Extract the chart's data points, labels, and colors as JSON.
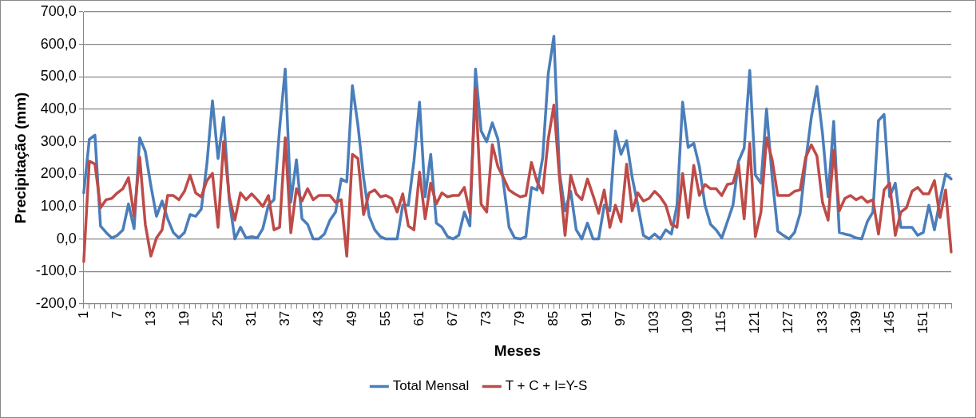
{
  "chart_data": {
    "type": "line",
    "xlabel": "Meses",
    "ylabel": "Precipitação (mm)",
    "categories": [
      "1",
      null,
      null,
      null,
      null,
      null,
      "7",
      null,
      null,
      null,
      null,
      null,
      "13",
      null,
      null,
      null,
      null,
      null,
      "19",
      null,
      null,
      null,
      null,
      null,
      "25",
      null,
      null,
      null,
      null,
      null,
      "31",
      null,
      null,
      null,
      null,
      null,
      "37",
      null,
      null,
      null,
      null,
      null,
      "43",
      null,
      null,
      null,
      null,
      null,
      "49",
      null,
      null,
      null,
      null,
      null,
      "55",
      null,
      null,
      null,
      null,
      null,
      "61",
      null,
      null,
      null,
      null,
      null,
      "67",
      null,
      null,
      null,
      null,
      null,
      "73",
      null,
      null,
      null,
      null,
      null,
      "79",
      null,
      null,
      null,
      null,
      null,
      "85",
      null,
      null,
      null,
      null,
      null,
      "91",
      null,
      null,
      null,
      null,
      null,
      "97",
      null,
      null,
      null,
      null,
      null,
      "103",
      null,
      null,
      null,
      null,
      null,
      "109",
      null,
      null,
      null,
      null,
      null,
      "115",
      null,
      null,
      null,
      null,
      null,
      "121",
      null,
      null,
      null,
      null,
      null,
      "127",
      null,
      null,
      null,
      null,
      null,
      "133",
      null,
      null,
      null,
      null,
      null,
      "139",
      null,
      null,
      null,
      null,
      null,
      "145",
      null,
      null,
      null,
      null,
      null,
      "151",
      null,
      null,
      null,
      null,
      null
    ],
    "series": [
      {
        "name": "Total Mensal",
        "color": "#4a7ebb",
        "values": [
          142,
          307,
          320,
          40,
          20,
          3,
          11,
          28,
          108,
          32,
          312,
          270,
          164,
          70,
          117,
          62,
          20,
          3,
          20,
          75,
          70,
          92,
          230,
          426,
          248,
          375,
          120,
          0,
          36,
          3,
          7,
          3,
          32,
          104,
          121,
          341,
          524,
          113,
          244,
          62,
          45,
          0,
          0,
          15,
          58,
          83,
          185,
          176,
          473,
          350,
          189,
          70,
          28,
          7,
          0,
          0,
          0,
          104,
          104,
          240,
          422,
          130,
          261,
          49,
          36,
          7,
          0,
          11,
          83,
          40,
          524,
          333,
          300,
          358,
          308,
          172,
          36,
          3,
          0,
          7,
          159,
          151,
          250,
          510,
          625,
          206,
          87,
          147,
          28,
          0,
          49,
          0,
          0,
          104,
          87,
          333,
          261,
          303,
          189,
          104,
          11,
          0,
          15,
          0,
          28,
          15,
          104,
          422,
          282,
          295,
          223,
          104,
          45,
          28,
          3,
          53,
          104,
          240,
          280,
          520,
          197,
          172,
          401,
          189,
          24,
          11,
          0,
          20,
          79,
          240,
          375,
          470,
          325,
          130,
          363,
          20,
          15,
          11,
          3,
          0,
          53,
          83,
          365,
          384,
          130,
          172,
          36,
          36,
          36,
          11,
          20,
          104,
          28,
          121,
          200,
          185
        ]
      },
      {
        "name": "T + C + I=Y-S",
        "color": "#be4b48",
        "values": [
          -70,
          240,
          231,
          96,
          121,
          125,
          142,
          155,
          189,
          70,
          252,
          45,
          -53,
          3,
          28,
          134,
          134,
          121,
          147,
          197,
          142,
          130,
          180,
          202,
          36,
          300,
          130,
          58,
          142,
          121,
          139,
          121,
          100,
          134,
          28,
          36,
          312,
          19,
          155,
          117,
          155,
          121,
          134,
          134,
          134,
          113,
          121,
          -53,
          261,
          248,
          75,
          142,
          151,
          130,
          134,
          125,
          83,
          139,
          40,
          28,
          206,
          62,
          172,
          108,
          142,
          130,
          134,
          134,
          159,
          79,
          464,
          108,
          83,
          291,
          223,
          189,
          151,
          139,
          130,
          134,
          236,
          176,
          142,
          308,
          413,
          189,
          11,
          197,
          139,
          121,
          185,
          134,
          79,
          151,
          36,
          104,
          53,
          231,
          87,
          142,
          117,
          125,
          147,
          130,
          104,
          45,
          36,
          202,
          66,
          227,
          134,
          168,
          155,
          155,
          134,
          168,
          172,
          231,
          62,
          295,
          7,
          83,
          312,
          244,
          134,
          134,
          134,
          147,
          151,
          252,
          290,
          256,
          113,
          58,
          274,
          87,
          125,
          134,
          121,
          130,
          113,
          121,
          15,
          151,
          172,
          11,
          83,
          96,
          147,
          159,
          139,
          139,
          180,
          66,
          151,
          -40
        ]
      }
    ],
    "ylim": [
      -200,
      700
    ],
    "yticks": [
      {
        "value": -200,
        "label": "-200,0"
      },
      {
        "value": -100,
        "label": "-100,0"
      },
      {
        "value": 0,
        "label": "0,0"
      },
      {
        "value": 100,
        "label": "100,0"
      },
      {
        "value": 200,
        "label": "200,0"
      },
      {
        "value": 300,
        "label": "300,0"
      },
      {
        "value": 400,
        "label": "400,0"
      },
      {
        "value": 500,
        "label": "500,0"
      },
      {
        "value": 600,
        "label": "600,0"
      },
      {
        "value": 700,
        "label": "700,0"
      }
    ],
    "grid": "y",
    "legend": "bottom",
    "marker": "none",
    "line_style": "solid"
  }
}
